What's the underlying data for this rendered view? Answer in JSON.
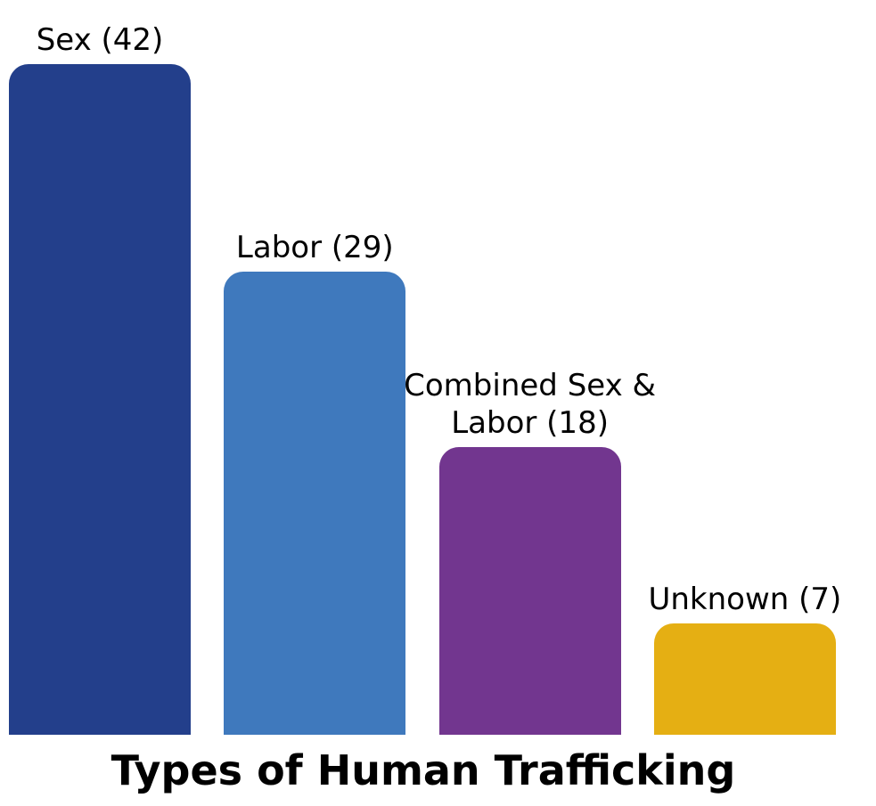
{
  "chart_data": {
    "type": "bar",
    "title": "Types of Human Trafficking",
    "values": [
      42,
      29,
      18,
      7
    ],
    "value_labels": [
      "Sex (42)",
      "Labor (29)",
      "Combined Sex & Labor (18)",
      "Unknown (7)"
    ],
    "colors": [
      "#233f8b",
      "#3f79bd",
      "#72368f",
      "#e5af13"
    ]
  }
}
